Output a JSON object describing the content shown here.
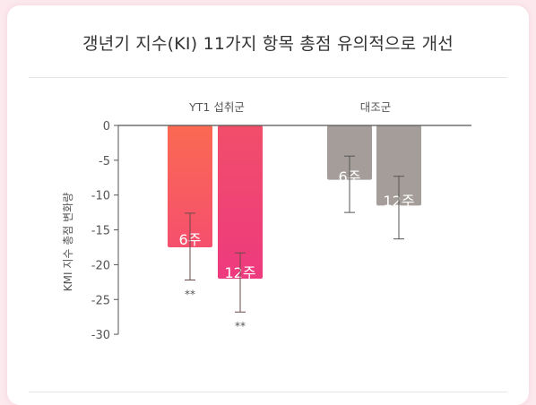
{
  "chart_data": {
    "type": "bar",
    "title": "갱년기 지수(KI) 11가지 항목 총점 유의적으로 개선",
    "ylabel": "KMI 지수 총점 변화량",
    "ylim": [
      -30,
      0
    ],
    "yticks": [
      0,
      -5,
      -10,
      -15,
      -20,
      -25,
      -30
    ],
    "grid": false,
    "groups": [
      {
        "name": "YT1 섭취군",
        "bars": [
          {
            "label": "6주",
            "value": -17.5,
            "err_low": -22.2,
            "err_high": -12.6,
            "sig": "**",
            "color": "#f65b68"
          },
          {
            "label": "12주",
            "value": -22,
            "err_low": -26.8,
            "err_high": -18.3,
            "sig": "**",
            "color": "#ef3f78"
          }
        ]
      },
      {
        "name": "대조군",
        "bars": [
          {
            "label": "6주",
            "value": -7.8,
            "err_low": -12.5,
            "err_high": -4.4,
            "sig": "",
            "color": "#a59d99"
          },
          {
            "label": "12주",
            "value": -11.5,
            "err_low": -16.3,
            "err_high": -7.3,
            "sig": "",
            "color": "#a59d99"
          }
        ]
      }
    ]
  }
}
